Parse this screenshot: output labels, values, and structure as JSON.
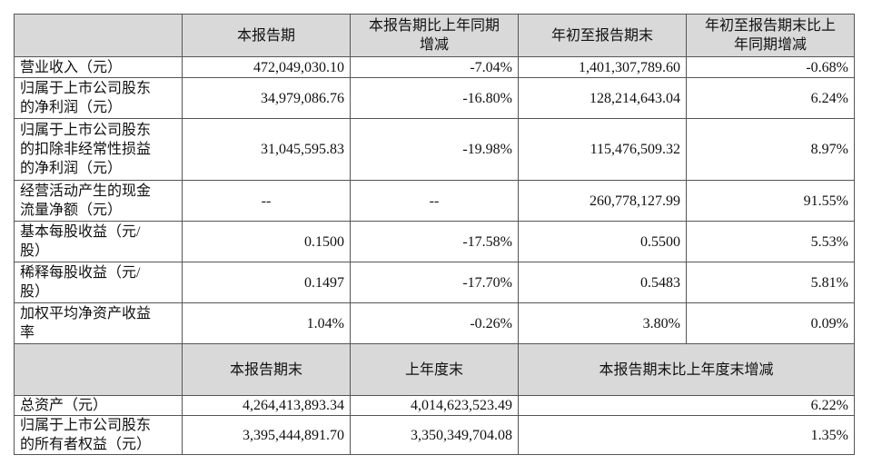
{
  "table": {
    "header": [
      "",
      [
        "本报告期"
      ],
      [
        "本报告期比上年同期",
        "增减"
      ],
      [
        "年初至报告期末"
      ],
      [
        "年初至报告期末比上",
        "年同期增减"
      ]
    ],
    "rows": [
      {
        "label": [
          "营业收入（元）"
        ],
        "cells": [
          "472,049,030.10",
          "-7.04%",
          "1,401,307,789.60",
          "-0.68%"
        ]
      },
      {
        "label": [
          "归属于上市公司股东",
          "的净利润（元）"
        ],
        "cells": [
          "34,979,086.76",
          "-16.80%",
          "128,214,643.04",
          "6.24%"
        ]
      },
      {
        "label": [
          "归属于上市公司股东",
          "的扣除非经常性损益",
          "的净利润（元）"
        ],
        "cells": [
          "31,045,595.83",
          "-19.98%",
          "115,476,509.32",
          "8.97%"
        ]
      },
      {
        "label": [
          "经营活动产生的现金",
          "流量净额（元）"
        ],
        "cells": [
          "--",
          "--",
          "260,778,127.99",
          "91.55%"
        ]
      },
      {
        "label": [
          "基本每股收益（元/",
          "股）"
        ],
        "cells": [
          "0.1500",
          "-17.58%",
          "0.5500",
          "5.53%"
        ]
      },
      {
        "label": [
          "稀释每股收益（元/",
          "股）"
        ],
        "cells": [
          "0.1497",
          "-17.70%",
          "0.5483",
          "5.81%"
        ]
      },
      {
        "label": [
          "加权平均净资产收益",
          "率"
        ],
        "cells": [
          "1.04%",
          "-0.26%",
          "3.80%",
          "0.09%"
        ]
      }
    ],
    "header2": [
      "本报告期末",
      "上年度末",
      "本报告期末比上年度末增减"
    ],
    "rows2": [
      {
        "label": [
          "总资产（元）"
        ],
        "cells": [
          "4,264,413,893.34",
          "4,014,623,523.49",
          "6.22%"
        ]
      },
      {
        "label": [
          "归属于上市公司股东",
          "的所有者权益（元）"
        ],
        "cells": [
          "3,395,444,891.70",
          "3,350,349,704.08",
          "1.35%"
        ]
      }
    ]
  }
}
